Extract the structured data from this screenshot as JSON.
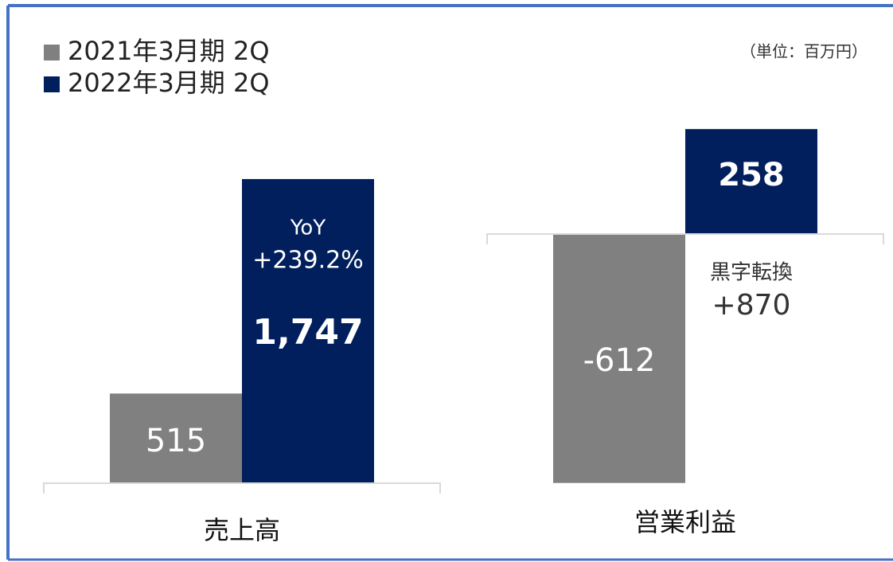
{
  "unit_note": "（単位：百万円）",
  "legend": [
    {
      "name": "2021年3月期 2Q",
      "color": "#808080"
    },
    {
      "name": "2022年3月期 2Q",
      "color": "#001f5c"
    }
  ],
  "chart_data": [
    {
      "type": "bar",
      "category": "売上高",
      "values": [
        515,
        1747
      ],
      "value_labels": [
        "515",
        "1,747"
      ],
      "ylim": [
        0,
        2000
      ],
      "annotation": [
        "YoY",
        "+239.2%"
      ]
    },
    {
      "type": "bar",
      "category": "営業利益",
      "values": [
        -612,
        258
      ],
      "value_labels": [
        "-612",
        "258"
      ],
      "ylim": [
        -700,
        300
      ],
      "annotation": [
        "黒字転換",
        "+870"
      ]
    }
  ]
}
